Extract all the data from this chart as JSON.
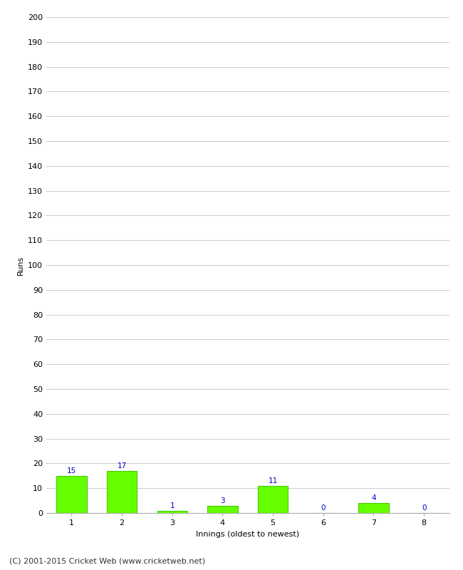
{
  "xlabel": "Innings (oldest to newest)",
  "ylabel": "Runs",
  "categories": [
    "1",
    "2",
    "3",
    "4",
    "5",
    "6",
    "7",
    "8"
  ],
  "values": [
    15,
    17,
    1,
    3,
    11,
    0,
    4,
    0
  ],
  "bar_color": "#66ff00",
  "bar_edge_color": "#44cc00",
  "label_color": "#0000cc",
  "ylim": [
    0,
    200
  ],
  "yticks": [
    0,
    10,
    20,
    30,
    40,
    50,
    60,
    70,
    80,
    90,
    100,
    110,
    120,
    130,
    140,
    150,
    160,
    170,
    180,
    190,
    200
  ],
  "background_color": "#ffffff",
  "grid_color": "#cccccc",
  "footer_text": "(C) 2001-2015 Cricket Web (www.cricketweb.net)",
  "label_fontsize": 7.5,
  "axis_label_fontsize": 8,
  "tick_fontsize": 8,
  "footer_fontsize": 8
}
